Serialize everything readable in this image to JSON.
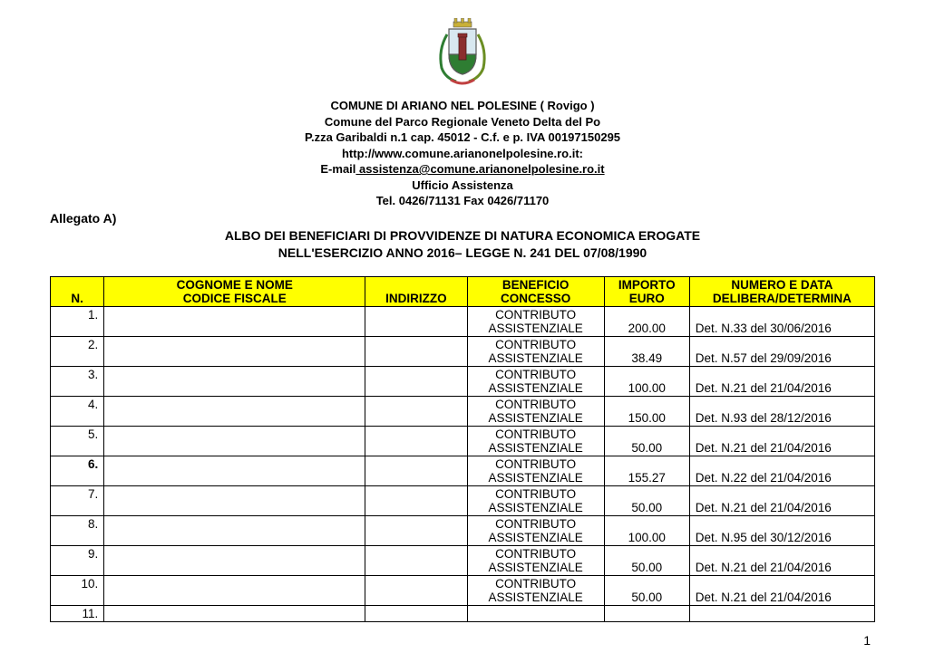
{
  "crest": {
    "shield_top_fill": "#d8e8f0",
    "shield_bottom_fill": "#2e7d32",
    "tower_fill": "#8b2e2e",
    "outline": "#5a5a5a",
    "crown_fill": "#c9b037",
    "branch_left": "#2e7d32",
    "branch_right": "#6b8e23",
    "ribbon": "#c04040"
  },
  "header": {
    "line1": "COMUNE DI ARIANO NEL POLESINE ( Rovigo )",
    "line2": "Comune del Parco Regionale Veneto Delta del Po",
    "line3": "P.zza Garibaldi n.1  cap. 45012 - C.f. e p. IVA 00197150295",
    "url": "http://www.comune.arianonelpolesine.ro.it:",
    "email_prefix": "E-mail",
    "email_link": " assistenza@comune.arianonelpolesine.ro.it",
    "line6": "Ufficio Assistenza",
    "line7": "Tel. 0426/71131 Fax 0426/71170"
  },
  "allegato": "Allegato A)",
  "title": {
    "line1": "ALBO DEI BENEFICIARI DI PROVVIDENZE DI NATURA ECONOMICA EROGATE",
    "line2": "NELL'ESERCIZIO ANNO 2016– LEGGE N. 241 DEL 07/08/1990"
  },
  "table": {
    "headers": {
      "n": "N.",
      "name_l1": "COGNOME E NOME",
      "name_l2": "CODICE FISCALE",
      "addr": "INDIRIZZO",
      "ben_l1": "BENEFICIO",
      "ben_l2": "CONCESSO",
      "imp_l1": "IMPORTO",
      "imp_l2": "EURO",
      "det_l1": "NUMERO E DATA",
      "det_l2": "DELIBERA/DETERMINA"
    },
    "rows": [
      {
        "n": "1.",
        "bold": false,
        "ben_l1": "CONTRIBUTO",
        "ben_l2": "ASSISTENZIALE",
        "imp": "200.00",
        "det": "Det. N.33 del 30/06/2016"
      },
      {
        "n": "2.",
        "bold": false,
        "ben_l1": "CONTRIBUTO",
        "ben_l2": "ASSISTENZIALE",
        "imp": "38.49",
        "det": "Det. N.57 del 29/09/2016"
      },
      {
        "n": "3.",
        "bold": false,
        "ben_l1": "CONTRIBUTO",
        "ben_l2": "ASSISTENZIALE",
        "imp": "100.00",
        "det": "Det. N.21 del 21/04/2016"
      },
      {
        "n": "4.",
        "bold": false,
        "ben_l1": "CONTRIBUTO",
        "ben_l2": "ASSISTENZIALE",
        "imp": "150.00",
        "det": "Det. N.93 del 28/12/2016"
      },
      {
        "n": "5.",
        "bold": false,
        "ben_l1": "CONTRIBUTO",
        "ben_l2": "ASSISTENZIALE",
        "imp": "50.00",
        "det": "Det. N.21 del 21/04/2016"
      },
      {
        "n": "6.",
        "bold": true,
        "ben_l1": "CONTRIBUTO",
        "ben_l2": "ASSISTENZIALE",
        "imp": "155.27",
        "det": "Det. N.22 del 21/04/2016"
      },
      {
        "n": "7.",
        "bold": false,
        "ben_l1": "CONTRIBUTO",
        "ben_l2": "ASSISTENZIALE",
        "imp": "50.00",
        "det": "Det. N.21 del 21/04/2016"
      },
      {
        "n": "8.",
        "bold": false,
        "ben_l1": "CONTRIBUTO",
        "ben_l2": "ASSISTENZIALE",
        "imp": "100.00",
        "det": "Det. N.95 del 30/12/2016"
      },
      {
        "n": "9.",
        "bold": false,
        "ben_l1": "CONTRIBUTO",
        "ben_l2": "ASSISTENZIALE",
        "imp": "50.00",
        "det": "Det. N.21 del 21/04/2016"
      },
      {
        "n": "10.",
        "bold": false,
        "ben_l1": "CONTRIBUTO",
        "ben_l2": "ASSISTENZIALE",
        "imp": "50.00",
        "det": "Det. N.21 del 21/04/2016"
      },
      {
        "n": "11.",
        "bold": false,
        "ben_l1": "",
        "ben_l2": "",
        "imp": "",
        "det": ""
      }
    ]
  },
  "page_number": "1"
}
